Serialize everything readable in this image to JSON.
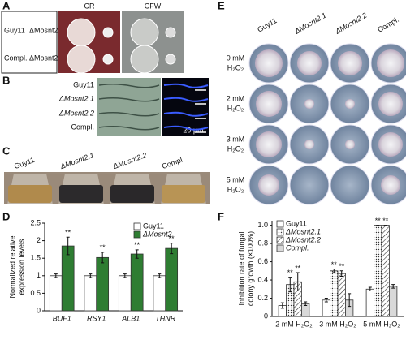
{
  "panel_labels": [
    "A",
    "B",
    "C",
    "D",
    "E",
    "F"
  ],
  "panel_a": {
    "strains": [
      [
        "Guy11",
        "ΔMosnt2.1"
      ],
      [
        "Compl.",
        "ΔMosnt2.2"
      ]
    ],
    "media": [
      "CR",
      "CFW"
    ]
  },
  "panel_b": {
    "strains": [
      "Guy11",
      "ΔMosnt2.1",
      "ΔMosnt2.2",
      "Compl."
    ],
    "scale_bar": "20 μm"
  },
  "panel_c": {
    "strains": [
      "Guy11",
      "ΔMosnt2.1",
      "ΔMosnt2.2",
      "Compl."
    ]
  },
  "panel_e": {
    "strains": [
      "Guy11",
      "ΔMosnt2.1",
      "ΔMosnt2.2",
      "Compl."
    ],
    "rows": [
      [
        "0 mM",
        "H₂O₂"
      ],
      [
        "2 mM",
        "H₂O₂"
      ],
      [
        "3 mM",
        "H₂O₂"
      ],
      [
        "5 mM",
        "H₂O₂"
      ]
    ]
  },
  "chart_data": [
    {
      "type": "bar",
      "ylabel": [
        "Normalized relative",
        "expression levels"
      ],
      "categories": [
        "BUF1",
        "RSY1",
        "ALB1",
        "THNR"
      ],
      "ylim": [
        0,
        2.5
      ],
      "yticks": [
        0,
        0.5,
        1,
        1.5,
        2,
        2.5
      ],
      "legend": "upper right",
      "series": [
        {
          "name": "Guy11",
          "color": "#ffffff",
          "values": [
            1,
            1,
            1,
            1
          ],
          "errors": [
            0.05,
            0.05,
            0.05,
            0.05
          ]
        },
        {
          "name": "ΔMosnt2",
          "color": "#2e7d32",
          "values": [
            1.85,
            1.52,
            1.62,
            1.78
          ],
          "errors": [
            0.25,
            0.15,
            0.12,
            0.15
          ],
          "annotations": [
            "**",
            "**",
            "**",
            "**"
          ]
        }
      ]
    },
    {
      "type": "bar",
      "ylabel": [
        "Inhibition rate of fungal",
        "colony growth (×100%)"
      ],
      "categories": [
        "2 mM H₂O₂",
        "3 mM H₂O₂",
        "5 mM H₂O₂"
      ],
      "ylim": [
        0,
        1.05
      ],
      "yticks": [
        0,
        0.2,
        0.4,
        0.6,
        0.8,
        {
          "value": 1,
          "label": "1.0"
        }
      ],
      "legend": "upper left",
      "series": [
        {
          "name": "Guy11",
          "color": "#ffffff",
          "values": [
            0.12,
            0.18,
            0.3
          ],
          "errors": [
            0.03,
            0.02,
            0.02
          ]
        },
        {
          "name": "ΔMosnt2.1",
          "color": "#ffffff",
          "pattern": "dots",
          "values": [
            0.35,
            0.5,
            1.0
          ],
          "errors": [
            0.08,
            0.02,
            0.0
          ],
          "annotations": [
            "**",
            "**",
            "**"
          ]
        },
        {
          "name": "ΔMosnt2.2",
          "color": "#ffffff",
          "pattern": "hatch",
          "values": [
            0.38,
            0.47,
            1.0
          ],
          "errors": [
            0.1,
            0.03,
            0.0
          ],
          "annotations": [
            "**",
            "**",
            "**"
          ]
        },
        {
          "name": "Compl.",
          "color": "#d9d9d9",
          "values": [
            0.14,
            0.18,
            0.33
          ],
          "errors": [
            0.02,
            0.07,
            0.02
          ]
        }
      ]
    }
  ]
}
